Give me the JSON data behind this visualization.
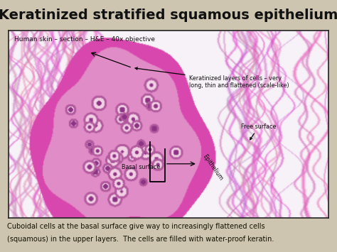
{
  "bg_color": "#cec5b0",
  "title": "Keratinized stratified squamous epithelium",
  "title_color": "#111111",
  "title_fontsize": 14,
  "title_bold": true,
  "subtitle": "Human skin – section – H&E – 40x objective",
  "subtitle_fontsize": 6.5,
  "subtitle_color": "#111111",
  "caption_line1": "Cuboidal cells at the basal surface give way to increasingly flattened cells",
  "caption_line2": "(squamous) in the upper layers.  The cells are filled with water-proof keratin.",
  "caption_fontsize": 7.0,
  "caption_color": "#111100",
  "image_border_color": "#222222",
  "image_border_lw": 1.2,
  "ann_keratinized_text": "Keratinized layers of cells – very\nlong, thin and flattened (scale-like)",
  "ann_free_surface_text": "Free surface",
  "ann_basal_surface_text": "Basal surface",
  "ann_epithelium_text": "Epithelium",
  "ann_fontsize": 5.8
}
